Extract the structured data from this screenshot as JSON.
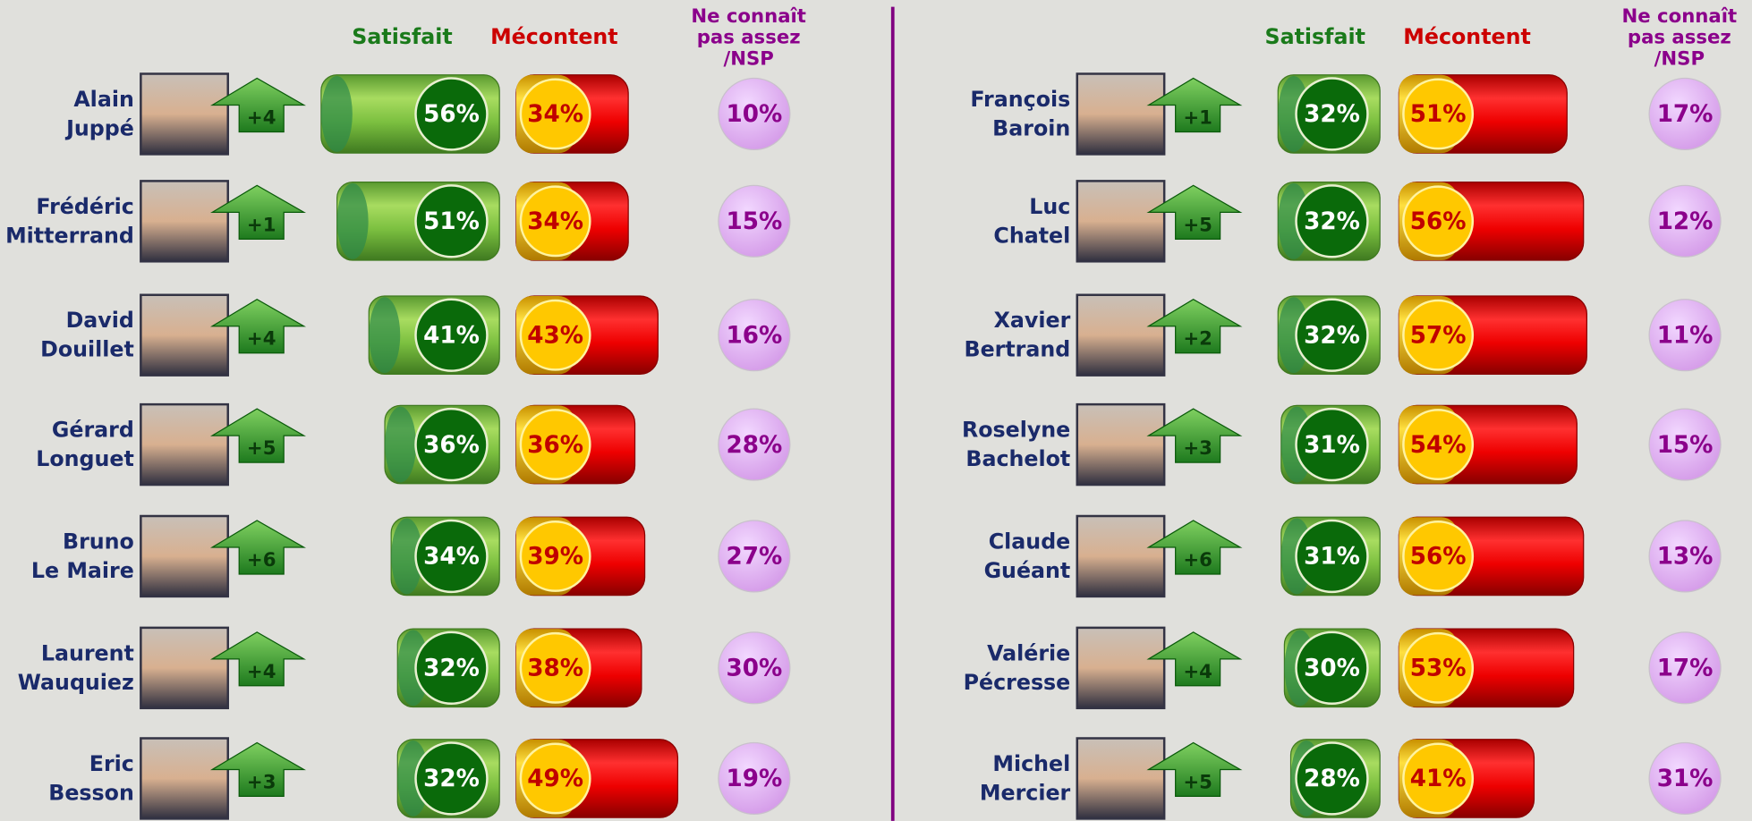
{
  "headers": {
    "satisfait": "Satisfait",
    "mecontent": "Mécontent",
    "nsp": [
      "Ne connaît",
      "pas assez",
      "/NSP"
    ]
  },
  "panels": [
    {
      "rows": [
        {
          "first": "Alain",
          "last": "Juppé",
          "change": "+4",
          "satisfait": 56,
          "satisfait_label": "56%",
          "mecontent": 34,
          "mecontent_label": "34%",
          "nsp": "10%"
        },
        {
          "first": "Frédéric",
          "last": "Mitterrand",
          "change": "+1",
          "satisfait": 51,
          "satisfait_label": "51%",
          "mecontent": 34,
          "mecontent_label": "34%",
          "nsp": "15%"
        },
        {
          "first": "David",
          "last": "Douillet",
          "change": "+4",
          "satisfait": 41,
          "satisfait_label": "41%",
          "mecontent": 43,
          "mecontent_label": "43%",
          "nsp": "16%"
        },
        {
          "first": "Gérard",
          "last": "Longuet",
          "change": "+5",
          "satisfait": 36,
          "satisfait_label": "36%",
          "mecontent": 36,
          "mecontent_label": "36%",
          "nsp": "28%"
        },
        {
          "first": "Bruno",
          "last": "Le Maire",
          "change": "+6",
          "satisfait": 34,
          "satisfait_label": "34%",
          "mecontent": 39,
          "mecontent_label": "39%",
          "nsp": "27%"
        },
        {
          "first": "Laurent",
          "last": "Wauquiez",
          "change": "+4",
          "satisfait": 32,
          "satisfait_label": "32%",
          "mecontent": 38,
          "mecontent_label": "38%",
          "nsp": "30%"
        },
        {
          "first": "Eric",
          "last": "Besson",
          "change": "+3",
          "satisfait": 32,
          "satisfait_label": "32%",
          "mecontent": 49,
          "mecontent_label": "49%",
          "nsp": "19%"
        }
      ]
    },
    {
      "rows": [
        {
          "first": "François",
          "last": "Baroin",
          "change": "+1",
          "satisfait": 32,
          "satisfait_label": "32%",
          "mecontent": 51,
          "mecontent_label": "51%",
          "nsp": "17%"
        },
        {
          "first": "Luc",
          "last": "Chatel",
          "change": "+5",
          "satisfait": 32,
          "satisfait_label": "32%",
          "mecontent": 56,
          "mecontent_label": "56%",
          "nsp": "12%"
        },
        {
          "first": "Xavier",
          "last": "Bertrand",
          "change": "+2",
          "satisfait": 32,
          "satisfait_label": "32%",
          "mecontent": 57,
          "mecontent_label": "57%",
          "nsp": "11%"
        },
        {
          "first": "Roselyne",
          "last": "Bachelot",
          "change": "+3",
          "satisfait": 31,
          "satisfait_label": "31%",
          "mecontent": 54,
          "mecontent_label": "54%",
          "nsp": "15%"
        },
        {
          "first": "Claude",
          "last": "Guéant",
          "change": "+6",
          "satisfait": 31,
          "satisfait_label": "31%",
          "mecontent": 56,
          "mecontent_label": "56%",
          "nsp": "13%"
        },
        {
          "first": "Valérie",
          "last": "Pécresse",
          "change": "+4",
          "satisfait": 30,
          "satisfait_label": "30%",
          "mecontent": 53,
          "mecontent_label": "53%",
          "nsp": "17%"
        },
        {
          "first": "Michel",
          "last": "Mercier",
          "change": "+5",
          "satisfait": 28,
          "satisfait_label": "28%",
          "mecontent": 41,
          "mecontent_label": "41%",
          "nsp": "31%"
        }
      ]
    }
  ]
}
